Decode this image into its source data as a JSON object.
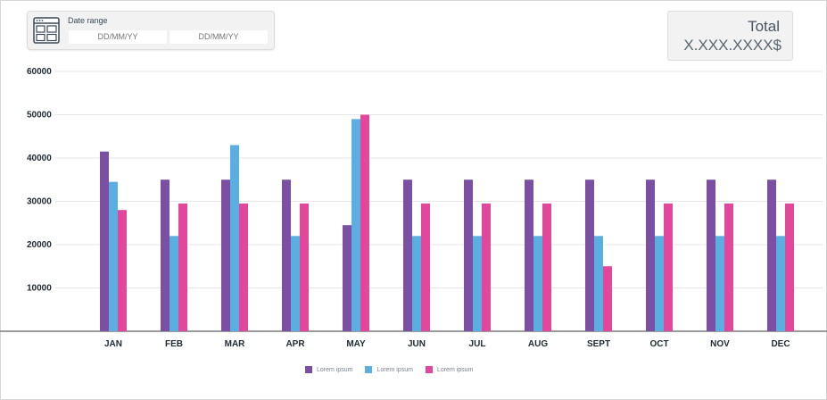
{
  "date_range": {
    "label": "Date range",
    "start_placeholder": "DD/MM/YY",
    "end_placeholder": "DD/MM/YY",
    "icon": "calendar-icon"
  },
  "total": {
    "label": "Total",
    "value": "X.XXX.XXXX$"
  },
  "chart_data": {
    "type": "bar",
    "categories": [
      "JAN",
      "FEB",
      "MAR",
      "APR",
      "MAY",
      "JUN",
      "JUL",
      "AUG",
      "SEPT",
      "OCT",
      "NOV",
      "DEC"
    ],
    "series": [
      {
        "name": "Lorem ipsum",
        "color": "#7b4fa2",
        "values": [
          41500,
          35000,
          35000,
          35000,
          24500,
          35000,
          35000,
          35000,
          35000,
          35000,
          35000,
          35000
        ]
      },
      {
        "name": "Lorem ipsum",
        "color": "#5aafe0",
        "values": [
          34500,
          22000,
          43000,
          22000,
          49000,
          22000,
          22000,
          22000,
          22000,
          22000,
          22000,
          22000
        ]
      },
      {
        "name": "Lorem ipsum",
        "color": "#e2479b",
        "values": [
          28000,
          29500,
          29500,
          29500,
          50000,
          29500,
          29500,
          29500,
          15000,
          29500,
          29500,
          29500
        ]
      }
    ],
    "y_ticks": [
      "10000",
      "20000",
      "30000",
      "40000",
      "50000",
      "60000"
    ],
    "ylim": [
      0,
      60000
    ],
    "grid": true,
    "legend": "bottom-center"
  }
}
